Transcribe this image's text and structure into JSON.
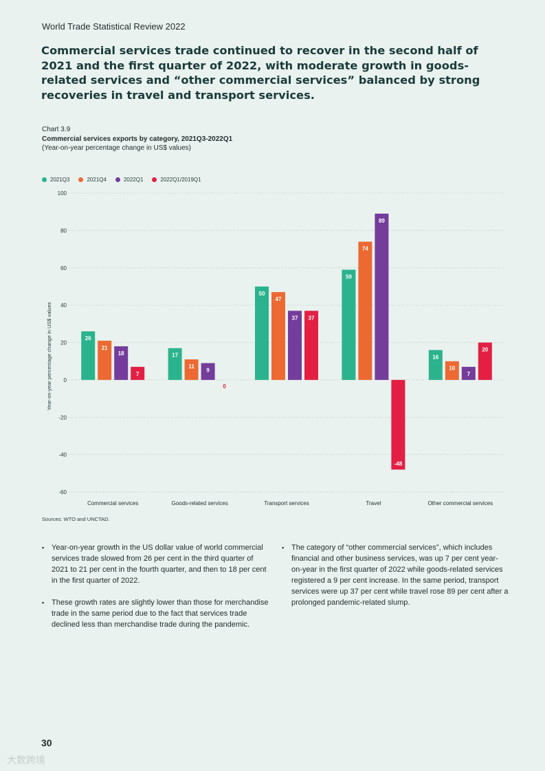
{
  "running_head": "World Trade Statistical Review 2022",
  "headline": "Commercial services trade continued to recover in the second half of 2021 and the first quarter of 2022, with moderate growth in goods-related services and “other commercial services” balanced by strong recoveries in travel and transport services.",
  "chart_label": "Chart 3.9",
  "chart_title": "Commercial services exports by category, 2021Q3-2022Q1",
  "chart_subtitle": "(Year-on-year percentage change in US$ values)",
  "sources": "Sources: WTO and UNCTAD.",
  "bullets_left": [
    "Year-on-year growth in the US dollar value of world commercial services trade slowed from 26 per cent in the third quarter of 2021 to 21 per cent in the fourth quarter, and then to 18 per cent in the first quarter of 2022.",
    "These growth rates are slightly lower than those for merchandise trade in the same period due to the fact that services trade declined less than merchandise trade during the pandemic."
  ],
  "bullets_right": [
    "The category of “other commercial services”, which includes financial and other business services, was up 7 per cent year-on-year in the first quarter of 2022 while goods-related services registered a 9 per cent increase.  In the same period, transport services were up 37 per cent while travel rose 89 per cent after a prolonged pandemic-related slump."
  ],
  "page_number": "30",
  "watermark": "大数跨境",
  "colors": {
    "2021Q3": "#2bb38d",
    "2021Q4": "#ec6a32",
    "2022Q1": "#743c9b",
    "2022Q1/2019Q1": "#e31f44"
  },
  "chart_data": {
    "type": "bar",
    "title": "Commercial services exports by category, 2021Q3-2022Q1",
    "subtitle": "(Year-on-year percentage change in US$ values)",
    "ylabel": "Year-on-year percentage change in US$ values",
    "xlabel": "",
    "ylim": [
      -60,
      100
    ],
    "yticks": [
      100,
      80,
      60,
      40,
      20,
      0,
      -20,
      -40,
      -60
    ],
    "grid": true,
    "legend_position": "top-left",
    "categories": [
      "Commercial services",
      "Goods-related services",
      "Transport services",
      "Travel",
      "Other commercial services"
    ],
    "series": [
      {
        "name": "2021Q3",
        "values": [
          26,
          17,
          50,
          59,
          16
        ]
      },
      {
        "name": "2021Q4",
        "values": [
          21,
          11,
          47,
          74,
          10
        ]
      },
      {
        "name": "2022Q1",
        "values": [
          18,
          9,
          37,
          89,
          7
        ]
      },
      {
        "name": "2022Q1/2019Q1",
        "values": [
          7,
          0,
          37,
          -48,
          20
        ]
      }
    ]
  }
}
